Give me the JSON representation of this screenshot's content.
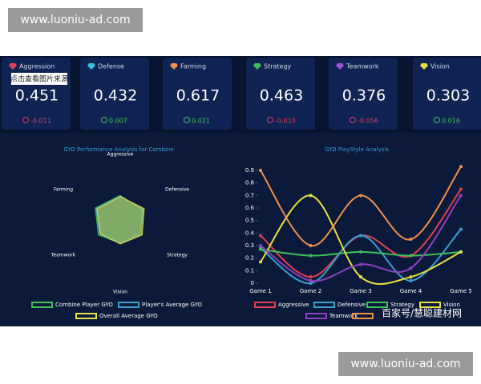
{
  "watermarks": [
    "www.luoniu-ad.com",
    "www.luoniu-ad.com",
    "百家号/慧聪建材网"
  ],
  "tooltip": "点击查看图片来源",
  "cards": [
    {
      "label": "Aggression",
      "value": "0.451",
      "change": "-0.011",
      "color": "#e0405a",
      "change_color": "#e0405a"
    },
    {
      "label": "Defense",
      "value": "0.432",
      "change": "0.007",
      "color": "#3ac0d8",
      "change_color": "#3ec05a"
    },
    {
      "label": "Farming",
      "value": "0.617",
      "change": "0.021",
      "color": "#f0904a",
      "change_color": "#3ec05a"
    },
    {
      "label": "Strategy",
      "value": "0.463",
      "change": "-0.010",
      "color": "#3ec05a",
      "change_color": "#e0405a"
    },
    {
      "label": "Teamwork",
      "value": "0.376",
      "change": "-0.056",
      "color": "#a050d0",
      "change_color": "#e0405a"
    },
    {
      "label": "Vision",
      "value": "0.303",
      "change": "0.016",
      "color": "#e8e040",
      "change_color": "#3ec05a"
    }
  ],
  "chart_data": [
    {
      "type": "radar",
      "title": "GYO Performance Analysis for Combine",
      "categories": [
        "Aggressive",
        "Defensive",
        "Strategy",
        "Vision",
        "Teamwork",
        "Farming"
      ],
      "rlim": [
        0,
        1
      ],
      "series": [
        {
          "name": "Combine Player GYO",
          "color": "#3ec05a",
          "values": [
            0.45,
            0.42,
            0.38,
            0.35,
            0.42,
            0.48
          ]
        },
        {
          "name": "Player's Average GYO",
          "color": "#3aa0d0",
          "values": [
            0.44,
            0.44,
            0.4,
            0.34,
            0.4,
            0.46
          ]
        },
        {
          "name": "Overall Average GYO",
          "color": "#e8e040",
          "values": [
            0.43,
            0.46,
            0.42,
            0.36,
            0.38,
            0.45
          ]
        }
      ]
    },
    {
      "type": "line",
      "title": "GYO PlayStyle Analysis",
      "categories": [
        "Game 1",
        "Game 2",
        "Game 3",
        "Game 4",
        "Game 5"
      ],
      "ylim": [
        0,
        0.95
      ],
      "yticks": [
        0,
        0.1,
        0.2,
        0.3,
        0.4,
        0.5,
        0.6,
        0.7,
        0.8,
        0.9
      ],
      "series": [
        {
          "name": "Aggressive",
          "color": "#e04050",
          "values": [
            0.38,
            0.05,
            0.38,
            0.22,
            0.75
          ]
        },
        {
          "name": "Defensive",
          "color": "#3aa0d0",
          "values": [
            0.28,
            0.0,
            0.38,
            0.02,
            0.43
          ]
        },
        {
          "name": "Strategy",
          "color": "#3ec05a",
          "values": [
            0.27,
            0.22,
            0.25,
            0.22,
            0.25
          ]
        },
        {
          "name": "Vision",
          "color": "#e8e040",
          "values": [
            0.17,
            0.7,
            0.05,
            0.05,
            0.25
          ]
        },
        {
          "name": "Teamwork",
          "color": "#9040c0",
          "values": [
            0.3,
            0.02,
            0.15,
            0.12,
            0.7
          ]
        },
        {
          "color": "#f0904a",
          "values": [
            0.9,
            0.3,
            0.7,
            0.35,
            0.93
          ]
        }
      ]
    }
  ]
}
